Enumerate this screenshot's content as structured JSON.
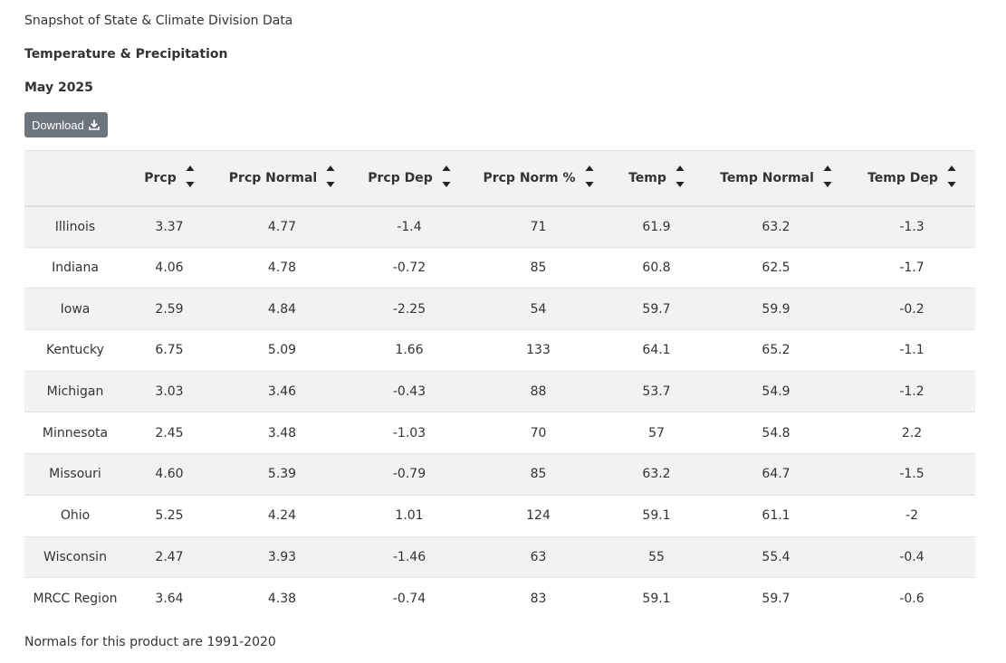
{
  "header": {
    "title": "Snapshot of State & Climate Division Data",
    "subtitle": "Temperature & Precipitation",
    "period": "May 2025"
  },
  "toolbar": {
    "download_label": "Download",
    "download_icon": "download-icon"
  },
  "table": {
    "columns": [
      "",
      "Prcp",
      "Prcp Normal",
      "Prcp Dep",
      "Prcp Norm %",
      "Temp",
      "Temp Normal",
      "Temp Dep"
    ],
    "rows": [
      [
        "Illinois",
        "3.37",
        "4.77",
        "-1.4",
        "71",
        "61.9",
        "63.2",
        "-1.3"
      ],
      [
        "Indiana",
        "4.06",
        "4.78",
        "-0.72",
        "85",
        "60.8",
        "62.5",
        "-1.7"
      ],
      [
        "Iowa",
        "2.59",
        "4.84",
        "-2.25",
        "54",
        "59.7",
        "59.9",
        "-0.2"
      ],
      [
        "Kentucky",
        "6.75",
        "5.09",
        "1.66",
        "133",
        "64.1",
        "65.2",
        "-1.1"
      ],
      [
        "Michigan",
        "3.03",
        "3.46",
        "-0.43",
        "88",
        "53.7",
        "54.9",
        "-1.2"
      ],
      [
        "Minnesota",
        "2.45",
        "3.48",
        "-1.03",
        "70",
        "57",
        "54.8",
        "2.2"
      ],
      [
        "Missouri",
        "4.60",
        "5.39",
        "-0.79",
        "85",
        "63.2",
        "64.7",
        "-1.5"
      ],
      [
        "Ohio",
        "5.25",
        "4.24",
        "1.01",
        "124",
        "59.1",
        "61.1",
        "-2"
      ],
      [
        "Wisconsin",
        "2.47",
        "3.93",
        "-1.46",
        "63",
        "55",
        "55.4",
        "-0.4"
      ],
      [
        "MRCC Region",
        "3.64",
        "4.38",
        "-0.74",
        "83",
        "59.1",
        "59.7",
        "-0.6"
      ]
    ]
  },
  "footer": {
    "note": "Normals for this product are 1991-2020"
  },
  "colors": {
    "button_bg": "#6c757d",
    "row_stripe": "#f2f2f2",
    "text": "#333333"
  }
}
